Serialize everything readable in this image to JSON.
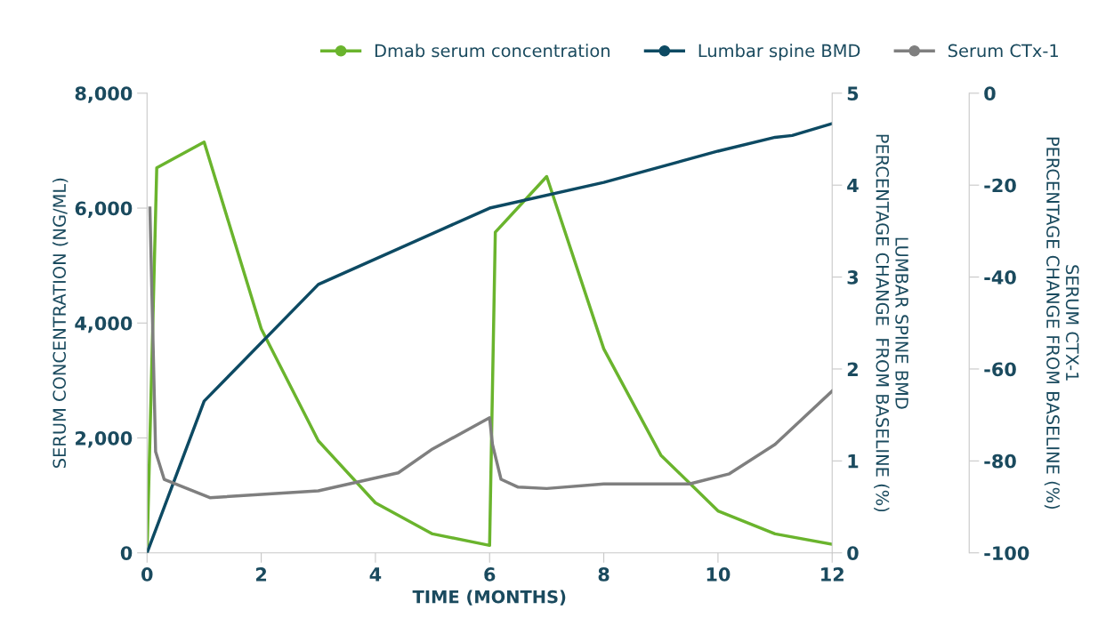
{
  "chart_data": {
    "type": "line",
    "xlabel": "TIME (MONTHS)",
    "ylabel": "SERUM CONCENTRATION (NG/ML)",
    "y2label": "LUMBAR SPINE BMD\nPERCENTAGE CHANGE  FROM BASELINE (%)",
    "y3label": "SERUM CTX-1\nPERCENTAGE CHANGE FROM BASELINE (%)",
    "xlim": [
      0,
      12
    ],
    "xticks": [
      0,
      2,
      4,
      6,
      8,
      10,
      12
    ],
    "ylim": [
      0,
      8000
    ],
    "yticks": [
      0,
      {
        "value": 2000,
        "label": "2,000"
      },
      {
        "value": 4000,
        "label": "4,000"
      },
      {
        "value": 6000,
        "label": "6,000"
      },
      {
        "value": 8000,
        "label": "8,000"
      }
    ],
    "y2lim": [
      0,
      5
    ],
    "y2ticks": [
      0,
      1,
      2,
      3,
      4,
      5
    ],
    "y3lim": [
      -100,
      0
    ],
    "y3ticks": [
      -100,
      -80,
      -60,
      -40,
      -20,
      0
    ],
    "grid": false,
    "legend": "top",
    "line_style": "solid",
    "series": [
      {
        "name": "Dmab serum concentration",
        "color": "#6ab42d",
        "x": [
          0,
          0.17,
          1,
          2,
          3,
          4,
          5,
          6,
          6.1,
          7,
          8,
          9,
          10,
          11,
          12
        ],
        "values": [
          0,
          6700,
          7150,
          3900,
          1950,
          870,
          330,
          130,
          5580,
          6550,
          3550,
          1700,
          730,
          330,
          150
        ]
      },
      {
        "name": "Lumbar spine BMD",
        "color": "#0d4a63",
        "axis": "y2",
        "x": [
          0,
          1,
          3,
          6,
          8,
          10,
          11,
          11.3,
          12
        ],
        "values": [
          0,
          1.65,
          2.92,
          3.75,
          4.03,
          4.37,
          4.52,
          4.54,
          4.67
        ]
      },
      {
        "name": "Serum CTx-1",
        "color": "#7f7f7f",
        "axis": "y3",
        "x": [
          0.05,
          0.15,
          0.3,
          1.1,
          3,
          4.4,
          5,
          6,
          6.05,
          6.2,
          6.5,
          7,
          8,
          9.5,
          10.2,
          11,
          11.5,
          12
        ],
        "values": [
          -25,
          -78,
          -84,
          -88,
          -86.5,
          -82.6,
          -77.4,
          -70.6,
          -76.4,
          -84,
          -85.7,
          -86,
          -85,
          -85,
          -82.8,
          -76.4,
          -70.6,
          -64.8
        ]
      }
    ]
  }
}
